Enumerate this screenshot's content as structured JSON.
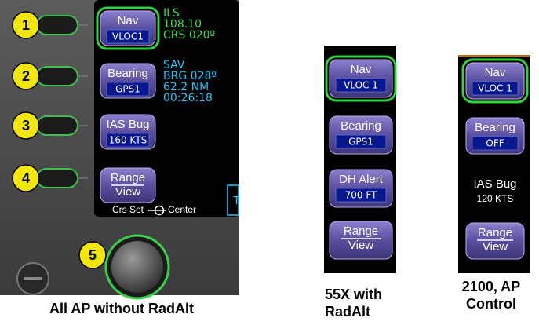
{
  "panels": [
    {
      "buttons": [
        {
          "label": "Nav",
          "value": "VLOC1"
        },
        {
          "label": "Bearing",
          "value": "GPS1"
        },
        {
          "label": "IAS Bug",
          "value": "160 KTS"
        },
        {
          "label": "Range",
          "value": "View"
        }
      ],
      "callouts": [
        "1",
        "2",
        "3",
        "4",
        "5"
      ],
      "nav_info": [
        "ILS",
        "108.10",
        "CRS 020º"
      ],
      "bearing_info": [
        "SAV",
        "BRG 028º",
        "62.2 NM",
        "00:26:18"
      ],
      "knob_labels": [
        "Crs Set",
        "Center"
      ],
      "edge_text": "T",
      "caption": [
        "All AP without RadAlt"
      ]
    },
    {
      "buttons": [
        {
          "label": "Nav",
          "value": "VLOC 1"
        },
        {
          "label": "Bearing",
          "value": "GPS1"
        },
        {
          "label": "DH Alert",
          "value": "700 FT"
        },
        {
          "label": "Range",
          "value": "View"
        }
      ],
      "caption": [
        "55X with",
        "RadAlt"
      ]
    },
    {
      "buttons": [
        {
          "label": "Nav",
          "value": "VLOC 1"
        },
        {
          "label": "Bearing",
          "value": "OFF"
        },
        {
          "label": "Range",
          "value": "View"
        }
      ],
      "ias_bug": {
        "label": "IAS Bug",
        "value": "120 KTS"
      },
      "caption": [
        "2100, AP",
        "Control"
      ]
    }
  ]
}
